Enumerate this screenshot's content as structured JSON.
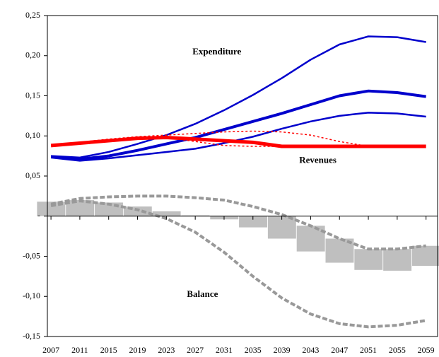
{
  "chart_data": {
    "type": "line",
    "x": [
      2007,
      2011,
      2015,
      2019,
      2023,
      2027,
      2031,
      2035,
      2039,
      2043,
      2047,
      2051,
      2055,
      2059
    ],
    "xlim": [
      2006.5,
      2060.6
    ],
    "xticks": [
      2007,
      2011,
      2015,
      2019,
      2023,
      2027,
      2031,
      2035,
      2039,
      2043,
      2047,
      2051,
      2055,
      2059
    ],
    "ylim": [
      -0.15,
      0.25
    ],
    "yticks": [
      {
        "value": -0.15,
        "label": "-0,15"
      },
      {
        "value": -0.1,
        "label": "-0,10"
      },
      {
        "value": -0.05,
        "label": "-0,05"
      },
      {
        "value": 0,
        "label": "-"
      },
      {
        "value": 0.05,
        "label": "0,05"
      },
      {
        "value": 0.1,
        "label": "0,10"
      },
      {
        "value": 0.15,
        "label": "0,15"
      },
      {
        "value": 0.2,
        "label": "0,20"
      },
      {
        "value": 0.25,
        "label": "0,25"
      }
    ],
    "band": {
      "color": "#bfbfbf",
      "high": [
        0.018,
        0.02,
        0.017,
        0.012,
        0.006,
        0.001,
        0,
        0,
        0,
        -0.012,
        -0.028,
        -0.041,
        -0.041,
        -0.037
      ],
      "low": [
        0,
        0,
        0,
        0,
        0,
        0,
        -0.004,
        -0.014,
        -0.028,
        -0.044,
        -0.058,
        -0.067,
        -0.068,
        -0.062
      ]
    },
    "series": [
      {
        "color": "#0000cc",
        "width": 2.5,
        "values": [
          0.075,
          0.073,
          0.08,
          0.09,
          0.101,
          0.115,
          0.132,
          0.151,
          0.172,
          0.195,
          0.214,
          0.224,
          0.223,
          0.217
        ]
      },
      {
        "color": "#0000cc",
        "width": 4,
        "values": [
          0.074,
          0.071,
          0.075,
          0.082,
          0.09,
          0.098,
          0.108,
          0.118,
          0.128,
          0.139,
          0.15,
          0.156,
          0.154,
          0.149
        ]
      },
      {
        "color": "#0000cc",
        "width": 2.5,
        "values": [
          0.073,
          0.069,
          0.072,
          0.076,
          0.08,
          0.084,
          0.091,
          0.099,
          0.109,
          0.118,
          0.125,
          0.129,
          0.128,
          0.124
        ]
      },
      {
        "color": "#ff0000",
        "width": 1.5,
        "dash": "3,3",
        "values": [
          0.088,
          0.092,
          0.096,
          0.099,
          0.101,
          0.103,
          0.105,
          0.106,
          0.105,
          0.101,
          0.093,
          0.087,
          null,
          null
        ]
      },
      {
        "color": "#ff0000",
        "width": 1.5,
        "dash": "3,3",
        "values": [
          null,
          null,
          null,
          null,
          0.098,
          0.093,
          0.088,
          0.087,
          0.087,
          null,
          null,
          null,
          null,
          null
        ]
      },
      {
        "color": "#ff0000",
        "width": 5,
        "values": [
          0.088,
          0.091,
          0.094,
          0.097,
          0.098,
          0.096,
          0.094,
          0.092,
          0.087,
          0.087,
          0.087,
          0.087,
          0.087,
          0.087
        ]
      },
      {
        "color": "#999999",
        "width": 4,
        "dash": "7,3",
        "values": [
          0.015,
          0.022,
          0.024,
          0.025,
          0.025,
          0.023,
          0.02,
          0.012,
          0.002,
          -0.012,
          -0.028,
          -0.041,
          -0.041,
          -0.037
        ]
      },
      {
        "color": "#999999",
        "width": 4,
        "dash": "7,3",
        "values": [
          0.013,
          0.019,
          0.015,
          0.008,
          -0.003,
          -0.02,
          -0.045,
          -0.075,
          -0.102,
          -0.122,
          -0.134,
          -0.138,
          -0.136,
          -0.13
        ]
      }
    ],
    "annotations": [
      {
        "text": "Expenditure",
        "x": 2030,
        "y": 0.204
      },
      {
        "text": "Revenues",
        "x": 2044,
        "y": 0.069
      },
      {
        "text": "Balance",
        "x": 2028,
        "y": -0.098
      }
    ]
  }
}
